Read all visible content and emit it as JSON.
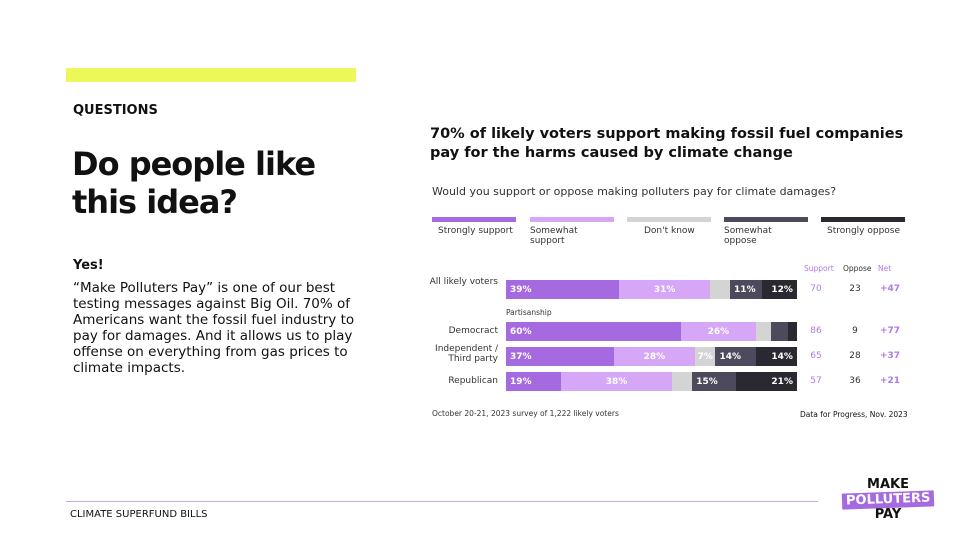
{
  "section": "QUESTIONS",
  "title": "Do people like this idea?",
  "answer": "Yes!",
  "body": "“Make Polluters Pay” is one of our best testing messages against Big Oil. 70% of Americans want the fossil fuel industry to pay for damages. And it allows us to play offense on everything from gas prices to climate impacts.",
  "footer": "CLIMATE SUPERFUND BILLS",
  "logo": {
    "line1": "MAKE",
    "line2": "POLLUTERS",
    "line3": "PAY"
  },
  "chart_data": {
    "type": "bar",
    "stacked": true,
    "title": "70% of likely voters support making fossil fuel companies pay for the harms caused by climate change",
    "question": "Would you support or oppose making polluters pay for climate damages?",
    "legend": [
      {
        "label": "Strongly support",
        "color": "#a66ae0"
      },
      {
        "label": "Somewhat support",
        "color": "#d6a6f7"
      },
      {
        "label": "Don't know",
        "color": "#d4d4d4"
      },
      {
        "label": "Somewhat oppose",
        "color": "#4d4a5e"
      },
      {
        "label": "Strongly oppose",
        "color": "#2a2830"
      }
    ],
    "group_label": "Partisanship",
    "columns": [
      "Support",
      "Oppose",
      "Net"
    ],
    "rows": [
      {
        "label": "All likely voters",
        "values": [
          39,
          31,
          7,
          11,
          12
        ],
        "shown": [
          "39%",
          "31%",
          "",
          "11%",
          "12%"
        ],
        "support": "70",
        "oppose": "23",
        "net": "+47"
      },
      {
        "label": "Democract",
        "values": [
          60,
          26,
          5,
          6,
          3
        ],
        "shown": [
          "60%",
          "26%",
          "",
          "",
          ""
        ],
        "support": "86",
        "oppose": "9",
        "net": "+77"
      },
      {
        "label": "Independent / Third party",
        "values": [
          37,
          28,
          7,
          14,
          14
        ],
        "shown": [
          "37%",
          "28%",
          "7%",
          "14%",
          "14%"
        ],
        "support": "65",
        "oppose": "28",
        "net": "+37"
      },
      {
        "label": "Republican",
        "values": [
          19,
          38,
          7,
          15,
          21
        ],
        "shown": [
          "19%",
          "38%",
          "",
          "15%",
          "21%"
        ],
        "support": "57",
        "oppose": "36",
        "net": "+21"
      }
    ],
    "note": "October 20-21, 2023 survey of 1,222 likely voters",
    "source": "Data for Progress, Nov. 2023"
  }
}
